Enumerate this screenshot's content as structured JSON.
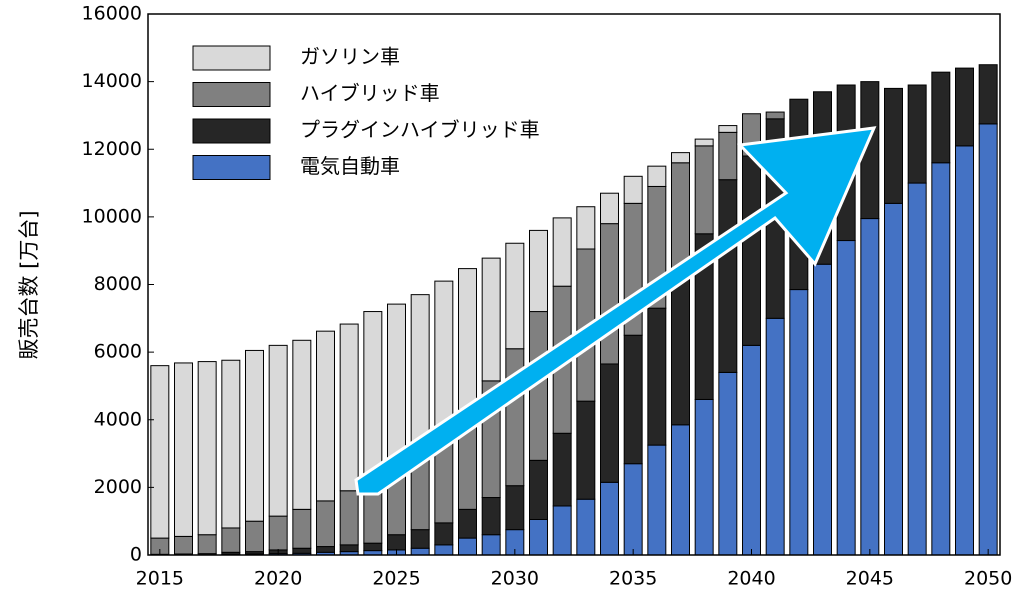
{
  "chart_data": {
    "type": "bar",
    "stacked": true,
    "y_label": "販売台数 [万台]",
    "x": [
      2015,
      2016,
      2017,
      2018,
      2019,
      2020,
      2021,
      2022,
      2023,
      2024,
      2025,
      2026,
      2027,
      2028,
      2029,
      2030,
      2031,
      2032,
      2033,
      2034,
      2035,
      2036,
      2037,
      2038,
      2039,
      2040,
      2041,
      2042,
      2043,
      2044,
      2045,
      2046,
      2047,
      2048,
      2049,
      2050
    ],
    "series": [
      {
        "name": "電気自動車",
        "color": "#4472c4",
        "values": [
          0,
          0,
          0,
          20,
          30,
          40,
          50,
          80,
          100,
          130,
          150,
          200,
          300,
          500,
          600,
          750,
          1050,
          1450,
          1650,
          2150,
          2700,
          3250,
          3850,
          4600,
          5400,
          6200,
          7000,
          7850,
          8600,
          9300,
          9950,
          10400,
          11000,
          11600,
          12100,
          12750
        ]
      },
      {
        "name": "プラグインハイブリッド車",
        "color": "#262626",
        "values": [
          20,
          30,
          40,
          60,
          70,
          110,
          150,
          170,
          200,
          220,
          450,
          550,
          650,
          850,
          1100,
          1300,
          1750,
          2150,
          2900,
          3500,
          3800,
          4050,
          4350,
          4900,
          5700,
          5600,
          5900,
          5630,
          5100,
          4600,
          4050,
          3400,
          2900,
          2680,
          2300,
          1750
        ]
      },
      {
        "name": "ハイブリッド車",
        "color": "#808080",
        "values": [
          480,
          520,
          560,
          720,
          900,
          1000,
          1150,
          1350,
          1600,
          1800,
          2000,
          2250,
          2550,
          2950,
          3450,
          4050,
          4400,
          4350,
          4500,
          4150,
          3900,
          3600,
          3400,
          2600,
          1400,
          1250,
          200,
          0,
          0,
          0,
          0,
          0,
          0,
          0,
          0,
          0
        ]
      },
      {
        "name": "ガソリン車",
        "color": "#d9d9d9",
        "values": [
          5100,
          5130,
          5120,
          4960,
          5050,
          5050,
          5000,
          5020,
          4930,
          5050,
          4820,
          4700,
          4600,
          4170,
          3630,
          3120,
          2400,
          2020,
          1250,
          900,
          800,
          600,
          300,
          200,
          200,
          0,
          0,
          0,
          0,
          0,
          0,
          0,
          0,
          0,
          0,
          0
        ]
      }
    ],
    "legend_order": [
      3,
      2,
      1,
      0
    ],
    "xlim": [
      2014.5,
      2050.5
    ],
    "xticks": [
      2015,
      2020,
      2025,
      2030,
      2035,
      2040,
      2045,
      2050
    ],
    "ylim": [
      0,
      16000
    ],
    "yticks": [
      0,
      2000,
      4000,
      6000,
      8000,
      10000,
      12000,
      14000,
      16000
    ],
    "grid": false,
    "legend": "upper left"
  }
}
